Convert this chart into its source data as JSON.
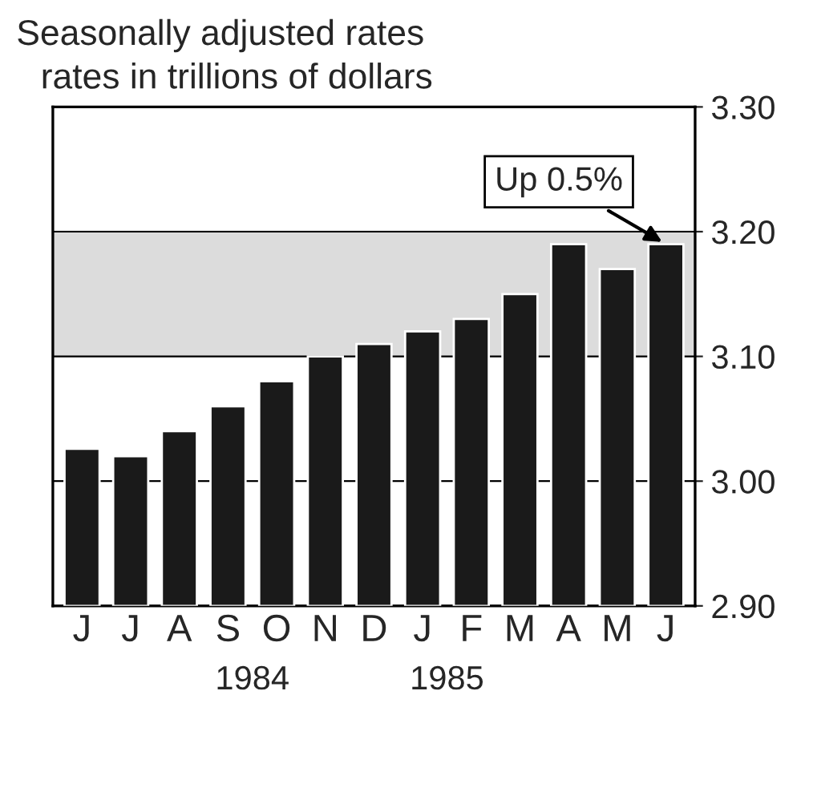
{
  "chart_data": {
    "type": "bar",
    "title": "Seasonally adjusted rates",
    "subtitle": "rates in trillions of dollars",
    "categories": [
      "J",
      "J",
      "A",
      "S",
      "O",
      "N",
      "D",
      "J",
      "F",
      "M",
      "A",
      "M",
      "J"
    ],
    "values": [
      3.026,
      3.02,
      3.04,
      3.06,
      3.08,
      3.1,
      3.11,
      3.12,
      3.13,
      3.15,
      3.19,
      3.17,
      3.19
    ],
    "color": "#1a1a1a",
    "ylim": [
      2.9,
      3.3
    ],
    "yticks": [
      {
        "value": 2.9,
        "label": "2.90"
      },
      {
        "value": 3.0,
        "label": "3.00"
      },
      {
        "value": 3.1,
        "label": "3.10"
      },
      {
        "value": 3.2,
        "label": "3.20"
      },
      {
        "value": 3.3,
        "label": "3.30"
      }
    ],
    "grid": "y",
    "bands": [
      {
        "axis": "y",
        "from": 3.1,
        "to": 3.2,
        "color": "#dcdcdc"
      }
    ],
    "annotations": [
      {
        "text": "Up 0.5%",
        "y": 3.19
      },
      "1984",
      "1985"
    ]
  }
}
